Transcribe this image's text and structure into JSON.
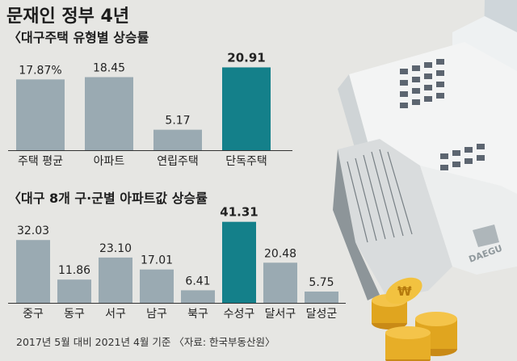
{
  "title": "문재인 정부 4년",
  "source": "2017년 5월 대비 2021년 4월 기준 〈자료: 한국부동산원〉",
  "colors": {
    "bar": "#9aaab2",
    "highlight": "#14808a",
    "background": "#e6e6e3"
  },
  "illustration": {
    "logo_text": "DAEGU",
    "coin_symbol": "₩"
  },
  "chart_data": [
    {
      "type": "bar",
      "title": "〈대구주택 유형별 상승률",
      "categories": [
        "주택 평균",
        "아파트",
        "연립주택",
        "단독주택"
      ],
      "values": [
        17.87,
        18.45,
        5.17,
        20.91
      ],
      "value_labels": [
        "17.87%",
        "18.45",
        "5.17",
        "20.91"
      ],
      "highlight_index": 3,
      "ylim": [
        0,
        21
      ]
    },
    {
      "type": "bar",
      "title": "〈대구 8개 구·군별 아파트값 상승률",
      "categories": [
        "중구",
        "동구",
        "서구",
        "남구",
        "북구",
        "수성구",
        "달서구",
        "달성군"
      ],
      "values": [
        32.03,
        11.86,
        23.1,
        17.01,
        6.41,
        41.31,
        20.48,
        5.75
      ],
      "value_labels": [
        "32.03",
        "11.86",
        "23.10",
        "17.01",
        "6.41",
        "41.31",
        "20.48",
        "5.75"
      ],
      "highlight_index": 5,
      "ylim": [
        0,
        42
      ]
    }
  ]
}
